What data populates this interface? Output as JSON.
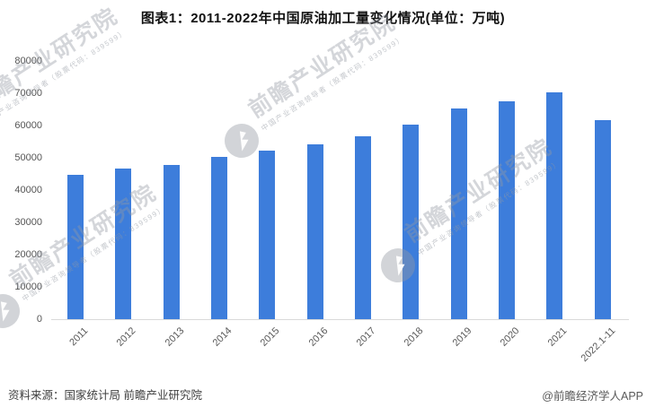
{
  "chart_data": {
    "type": "bar",
    "title": "图表1：2011-2022年中国原油加工量变化情况(单位：万吨)",
    "unit": "万吨",
    "categories": [
      "2011",
      "2012",
      "2013",
      "2014",
      "2015",
      "2016",
      "2017",
      "2018",
      "2019",
      "2020",
      "2021",
      "2022.1-11"
    ],
    "values": [
      44774,
      46791,
      47858,
      50278,
      52235,
      54132,
      56770,
      60357,
      65198,
      67441,
      70355,
      61708
    ],
    "ylim": [
      0,
      80000
    ],
    "ytick_step": 10000,
    "ytick_labels": [
      "0",
      "10000",
      "20000",
      "30000",
      "40000",
      "50000",
      "60000",
      "70000",
      "80000"
    ],
    "xlabel": "",
    "ylabel": "",
    "grid": false,
    "legend": null,
    "bar_color": "#3D7DDB",
    "axis_label_color": "#595959",
    "axis_line_color": "#D9D9D9"
  },
  "footer": {
    "source": "资料来源：国家统计局 前瞻产业研究院",
    "credit": "@前瞻经济学人APP"
  },
  "watermark": {
    "logo_icon": "qianzhan-logo",
    "big_text": "前瞻产业研究院",
    "sub_text": "中国产业咨询领导者（股票代码：839599）"
  }
}
